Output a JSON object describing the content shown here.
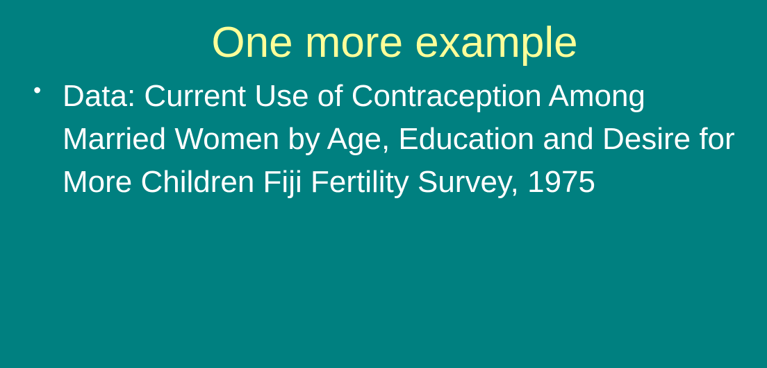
{
  "slide": {
    "title": "One more example",
    "bullets": [
      {
        "marker": "•",
        "text": "Data: Current Use of Contraception Among Married Women by Age, Education and Desire for More Children Fiji Fertility Survey, 1975"
      }
    ],
    "colors": {
      "background": "#008080",
      "title": "#ffff99",
      "body": "#ffffff"
    }
  }
}
